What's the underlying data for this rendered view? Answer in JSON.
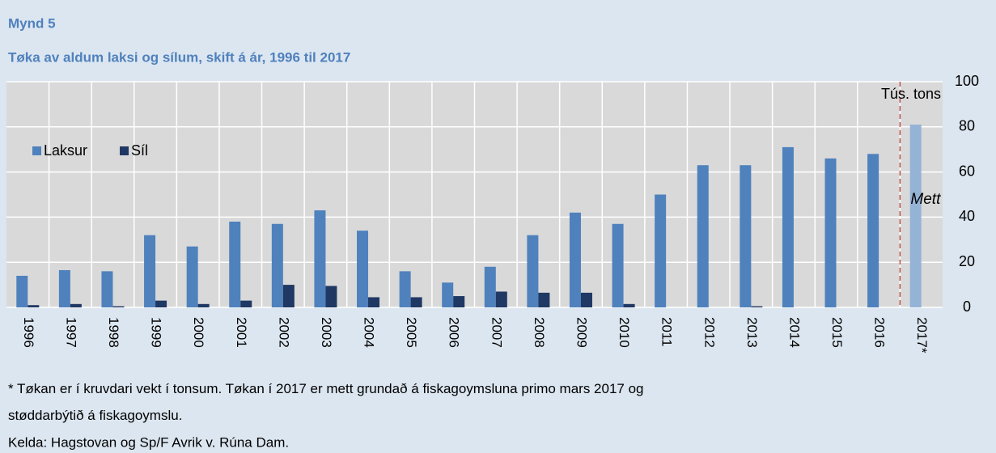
{
  "chart_data": {
    "type": "bar",
    "figure_label": "Mynd 5",
    "title": "Tøka av aldum laksi og sílum, skift á ár, 1996 til 2017",
    "y_axis_label": "Tús. tons",
    "annotation": "Mett",
    "footnote": "* Tøkan er í kruvdari vekt í tonsum. Tøkan í 2017 er mett grundað á fiskagoymsluna primo mars 2017 og støddarbýtið á fiskagoymslu.",
    "source": "Kelda: Hagstovan og Sp/F Avrik v. Rúna Dam.",
    "categories": [
      "1996",
      "1997",
      "1998",
      "1999",
      "2000",
      "2001",
      "2002",
      "2003",
      "2004",
      "2005",
      "2006",
      "2007",
      "2008",
      "2009",
      "2010",
      "2011",
      "2012",
      "2013",
      "2014",
      "2015",
      "2016",
      "2017*"
    ],
    "series": [
      {
        "name": "Laksur",
        "color": "#4f81bd",
        "colors": [
          "#4f81bd",
          "#4f81bd",
          "#4f81bd",
          "#4f81bd",
          "#4f81bd",
          "#4f81bd",
          "#4f81bd",
          "#4f81bd",
          "#4f81bd",
          "#4f81bd",
          "#4f81bd",
          "#4f81bd",
          "#4f81bd",
          "#4f81bd",
          "#4f81bd",
          "#4f81bd",
          "#4f81bd",
          "#4f81bd",
          "#4f81bd",
          "#4f81bd",
          "#4f81bd",
          "#95b3d7"
        ],
        "values": [
          14,
          16.5,
          16,
          32,
          27,
          38,
          37,
          43,
          34,
          16,
          11,
          18,
          32,
          42,
          37,
          50,
          63,
          63,
          71,
          66,
          68,
          81
        ]
      },
      {
        "name": "Síl",
        "color": "#1f3864",
        "values": [
          1,
          1.5,
          0.5,
          3,
          1.5,
          3,
          10,
          9.5,
          4.5,
          4.5,
          5,
          7,
          6.5,
          6.5,
          1.5,
          0,
          0,
          0.5,
          0,
          0,
          0,
          0
        ]
      }
    ],
    "ylim": [
      0,
      100
    ],
    "yticks": [
      0,
      20,
      40,
      60,
      80,
      100
    ],
    "grid": true,
    "legend": "upper left"
  }
}
